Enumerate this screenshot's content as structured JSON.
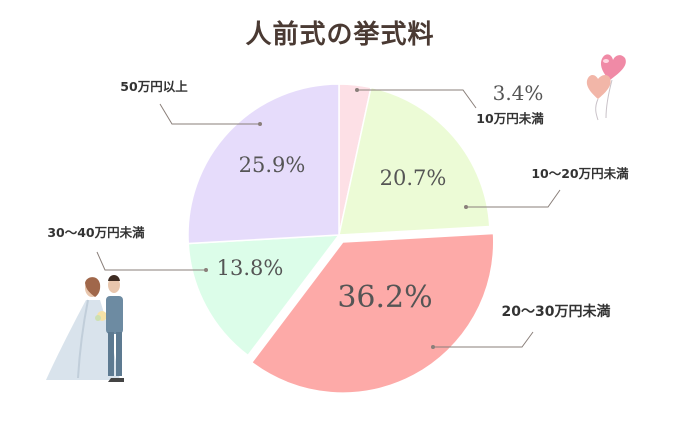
{
  "chart_data": {
    "type": "pie",
    "title": "人前式の挙式料",
    "slices": [
      {
        "label": "10万円未満",
        "value": 3.4,
        "value_label": "3.4%",
        "color": "#fde0e6"
      },
      {
        "label": "10〜20万円未満",
        "value": 20.7,
        "value_label": "20.7%",
        "color": "#ecfbd6"
      },
      {
        "label": "20〜30万円未満",
        "value": 36.2,
        "value_label": "36.2%",
        "color": "#fdaaa8"
      },
      {
        "label": "30〜40万円未満",
        "value": 13.8,
        "value_label": "13.8%",
        "color": "#dcfde9"
      },
      {
        "label": "50万円以上",
        "value": 25.9,
        "value_label": "25.9%",
        "color": "#e6dcfb"
      }
    ],
    "start": "top, clockwise"
  },
  "decorations": {
    "balloons": "heart-balloons-icon",
    "couple": "wedding-couple-illustration"
  },
  "colors": {
    "title": "#4a3a33",
    "text": "#333333",
    "value_text": "#555555",
    "leader": "#8a7f7a"
  }
}
